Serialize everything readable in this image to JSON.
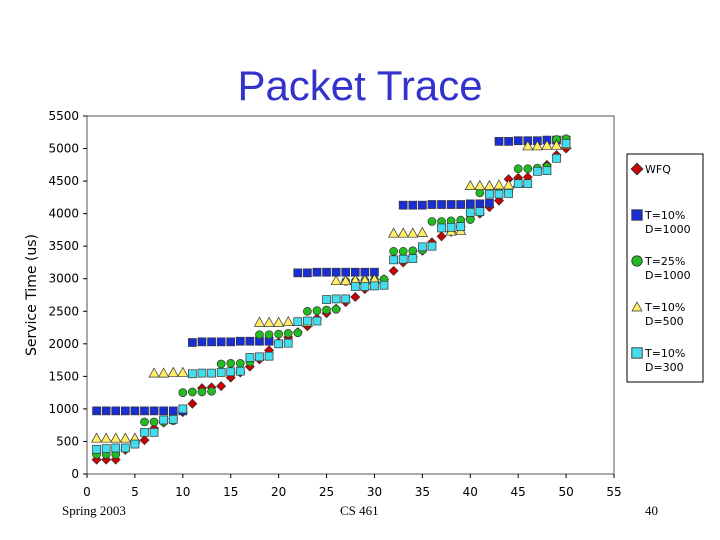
{
  "slide": {
    "footer_left": "Spring 2003",
    "footer_center": "CS 461",
    "page_number": "40"
  },
  "chart_data": {
    "type": "scatter",
    "title": "Packet Trace",
    "xlabel": "",
    "ylabel": "Service Time (us)",
    "xlim": [
      0,
      55
    ],
    "ylim": [
      0,
      5500
    ],
    "xticks": [
      0,
      5,
      10,
      15,
      20,
      25,
      30,
      35,
      40,
      45,
      50,
      55
    ],
    "yticks": [
      0,
      500,
      1000,
      1500,
      2000,
      2500,
      3000,
      3500,
      4000,
      4500,
      5000,
      5500
    ],
    "grid": false,
    "legend_position": "right",
    "series": [
      {
        "name": "WFQ",
        "name_lines": [
          "WFQ"
        ],
        "marker": "diamond",
        "color": "#cc0000",
        "x": [
          1,
          2,
          3,
          4,
          5,
          6,
          7,
          8,
          9,
          10,
          11,
          12,
          13,
          14,
          15,
          16,
          17,
          18,
          19,
          20,
          21,
          22,
          23,
          24,
          25,
          26,
          27,
          28,
          29,
          30,
          31,
          32,
          33,
          34,
          35,
          36,
          37,
          38,
          39,
          40,
          41,
          42,
          43,
          44,
          45,
          46,
          47,
          48,
          49,
          50
        ],
        "y": [
          220,
          220,
          220,
          370,
          470,
          520,
          700,
          790,
          850,
          950,
          1080,
          1320,
          1330,
          1350,
          1480,
          1560,
          1650,
          1760,
          1900,
          2020,
          2100,
          2180,
          2270,
          2390,
          2470,
          2540,
          2640,
          2720,
          2840,
          2930,
          2990,
          3120,
          3250,
          3340,
          3430,
          3560,
          3650,
          3720,
          3800,
          3920,
          4000,
          4100,
          4200,
          4530,
          4550,
          4560,
          4690,
          4750,
          4900,
          5000
        ]
      },
      {
        "name": "T=10% D=1000",
        "name_lines": [
          "T=10%",
          "D=1000"
        ],
        "marker": "square",
        "color": "#1a2ed6",
        "x": [
          1,
          2,
          3,
          4,
          5,
          6,
          7,
          8,
          9,
          10,
          11,
          12,
          13,
          14,
          15,
          16,
          17,
          18,
          19,
          22,
          23,
          24,
          25,
          26,
          27,
          28,
          29,
          30,
          33,
          34,
          35,
          36,
          37,
          38,
          39,
          40,
          41,
          42,
          43,
          44,
          45,
          46,
          47,
          48,
          49,
          50
        ],
        "y": [
          970,
          970,
          970,
          970,
          970,
          970,
          970,
          970,
          970,
          970,
          2020,
          2030,
          2030,
          2030,
          2030,
          2040,
          2040,
          2040,
          2040,
          3090,
          3090,
          3100,
          3100,
          3100,
          3100,
          3100,
          3100,
          3100,
          4130,
          4130,
          4130,
          4140,
          4140,
          4140,
          4140,
          4150,
          4150,
          4160,
          5110,
          5110,
          5120,
          5120,
          5120,
          5130,
          5130,
          5130
        ]
      },
      {
        "name": "T=25% D=1000",
        "name_lines": [
          "T=25%",
          "D=1000"
        ],
        "marker": "circle",
        "color": "#22bb22",
        "x": [
          1,
          2,
          3,
          4,
          5,
          6,
          7,
          8,
          9,
          10,
          11,
          12,
          13,
          14,
          15,
          16,
          17,
          18,
          19,
          20,
          21,
          22,
          23,
          24,
          25,
          26,
          27,
          28,
          29,
          30,
          31,
          32,
          33,
          34,
          35,
          36,
          37,
          38,
          39,
          40,
          41,
          42,
          43,
          44,
          45,
          46,
          47,
          48,
          49,
          50
        ],
        "y": [
          300,
          300,
          300,
          400,
          500,
          800,
          800,
          800,
          820,
          1250,
          1260,
          1260,
          1270,
          1690,
          1700,
          1700,
          1720,
          2140,
          2140,
          2150,
          2160,
          2170,
          2500,
          2510,
          2520,
          2530,
          2960,
          2960,
          2970,
          2980,
          2990,
          3420,
          3420,
          3430,
          3440,
          3880,
          3880,
          3890,
          3900,
          3910,
          4320,
          4320,
          4330,
          4340,
          4690,
          4690,
          4700,
          4720,
          5140,
          5150
        ]
      },
      {
        "name": "T=10% D=500",
        "name_lines": [
          "T=10%",
          "D=500"
        ],
        "marker": "triangle",
        "color": "#ffee66",
        "x": [
          1,
          2,
          3,
          4,
          5,
          7,
          8,
          9,
          10,
          18,
          19,
          20,
          21,
          23,
          26,
          27,
          28,
          29,
          30,
          32,
          33,
          34,
          35,
          38,
          39,
          40,
          41,
          42,
          43,
          44,
          45,
          46,
          47,
          48,
          49,
          50
        ],
        "y": [
          550,
          550,
          550,
          550,
          550,
          1550,
          1550,
          1560,
          1560,
          2330,
          2330,
          2330,
          2340,
          2330,
          2970,
          2970,
          2980,
          2980,
          2990,
          3700,
          3700,
          3700,
          3710,
          3730,
          3740,
          4430,
          4430,
          4430,
          4440,
          4440,
          4470,
          5040,
          5040,
          5050,
          5050,
          5060
        ]
      },
      {
        "name": "T=10% D=300",
        "name_lines": [
          "T=10%",
          "D=300"
        ],
        "marker": "square",
        "color": "#44ddee",
        "x": [
          1,
          2,
          3,
          4,
          5,
          6,
          7,
          8,
          9,
          10,
          11,
          12,
          13,
          14,
          15,
          16,
          17,
          18,
          19,
          20,
          21,
          22,
          23,
          24,
          25,
          26,
          27,
          28,
          29,
          30,
          31,
          32,
          33,
          34,
          35,
          36,
          37,
          38,
          39,
          40,
          41,
          42,
          43,
          44,
          45,
          46,
          47,
          48,
          49,
          50
        ],
        "y": [
          380,
          390,
          400,
          400,
          460,
          640,
          640,
          830,
          840,
          1000,
          1540,
          1550,
          1550,
          1560,
          1570,
          1580,
          1790,
          1800,
          1810,
          2000,
          2010,
          2340,
          2350,
          2350,
          2680,
          2690,
          2690,
          2880,
          2880,
          2890,
          2900,
          3290,
          3300,
          3310,
          3490,
          3500,
          3780,
          3790,
          3800,
          4020,
          4030,
          4300,
          4300,
          4310,
          4460,
          4460,
          4650,
          4660,
          4850,
          5080
        ]
      }
    ]
  }
}
